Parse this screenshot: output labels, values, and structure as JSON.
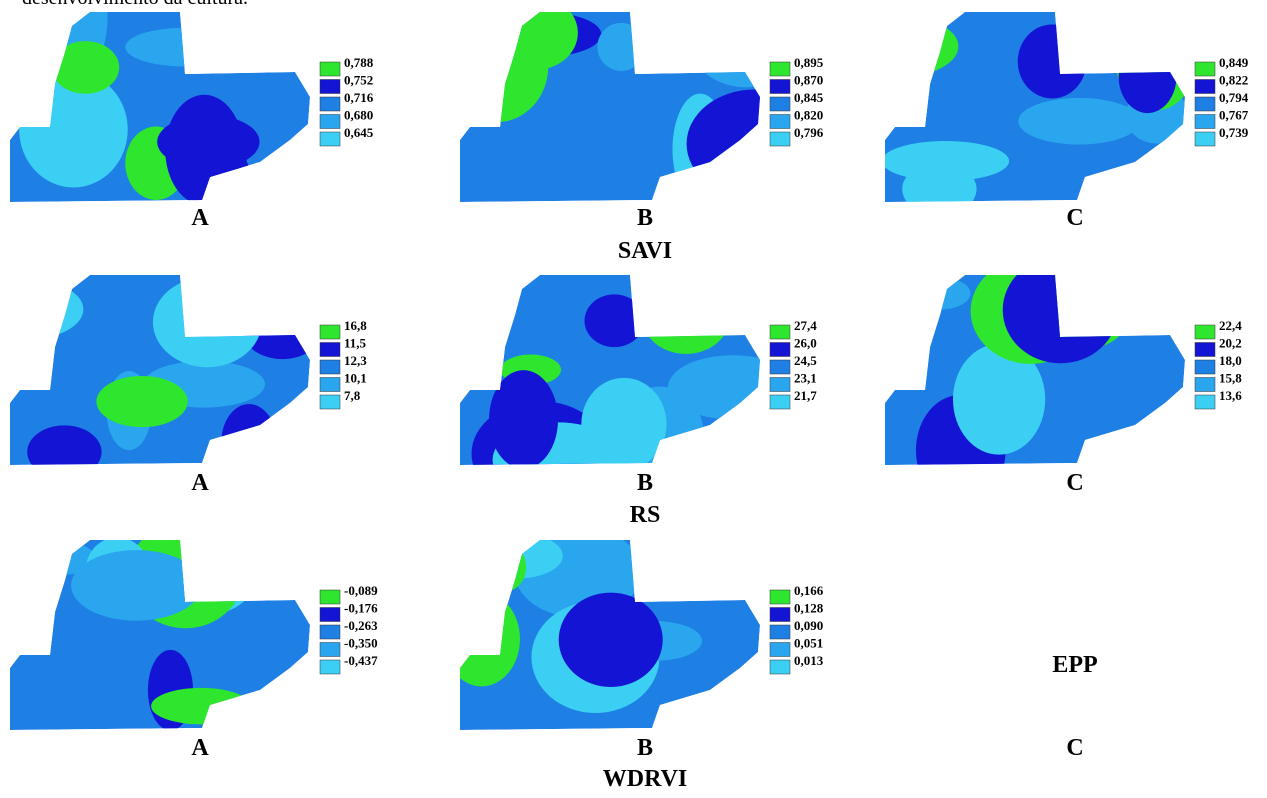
{
  "intro_text": "desenvolvimento da cultura.",
  "groups": [
    {
      "title": "SAVI",
      "maps": [
        {
          "label": "A",
          "legend": [
            "0,788",
            "0,752",
            "0,716",
            "0,680",
            "0,645"
          ]
        },
        {
          "label": "B",
          "legend": [
            "0,895",
            "0,870",
            "0,845",
            "0,820",
            "0,796"
          ]
        },
        {
          "label": "C",
          "legend": [
            "0,849",
            "0,822",
            "0,794",
            "0,767",
            "0,739"
          ]
        }
      ]
    },
    {
      "title": "RS",
      "maps": [
        {
          "label": "A",
          "legend": [
            "16,8",
            "11,5",
            "12,3",
            "10,1",
            "7,8"
          ]
        },
        {
          "label": "B",
          "legend": [
            "27,4",
            "26,0",
            "24,5",
            "23,1",
            "21,7"
          ]
        },
        {
          "label": "C",
          "legend": [
            "22,4",
            "20,2",
            "18,0",
            "15,8",
            "13,6"
          ]
        }
      ]
    },
    {
      "title": "WDRVI",
      "maps": [
        {
          "label": "A",
          "legend": [
            "-0,089",
            "-0,176",
            "-0,263",
            "-0,350",
            "-0,437"
          ]
        },
        {
          "label": "B",
          "legend": [
            "0,166",
            "0,128",
            "0,090",
            "0,051",
            "0,013"
          ]
        },
        {
          "label": "C",
          "placeholder": "EPP"
        }
      ]
    }
  ]
}
